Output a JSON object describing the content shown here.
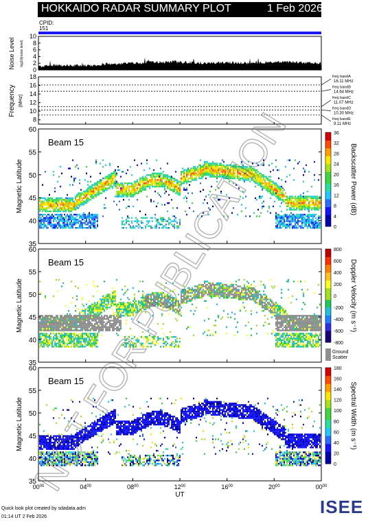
{
  "header": {
    "title": "HOKKAIDO RADAR SUMMARY PLOT",
    "date": "1 Feb 2026",
    "cpid_label": "CPID:",
    "cpid_value": "151"
  },
  "noise_panel": {
    "ylabel": "Noise Level",
    "ylabel_sub": "log10(noise level)",
    "ticks": [
      "0",
      "2",
      "4",
      "6",
      "8",
      "10"
    ]
  },
  "freq_panel": {
    "ylabel": "Frequency",
    "ylabel_unit": "(MHz)",
    "ticks": [
      "8",
      "10",
      "12",
      "14",
      "16",
      "18"
    ],
    "bands": [
      {
        "label": "freq bandA",
        "value": "16.11 MHz",
        "freq": 16.11
      },
      {
        "label": "freq bandB",
        "value": "14.64 MHz",
        "freq": 14.64
      },
      {
        "label": "freq bandC",
        "value": "11.07 MHz",
        "freq": 11.07
      },
      {
        "label": "freq bandD",
        "value": "10.30 MHz",
        "freq": 10.3
      },
      {
        "label": "freq bandE",
        "value": "9.11 MHz",
        "freq": 9.11
      }
    ]
  },
  "panels": [
    {
      "beam": "Beam 15",
      "ylabel": "Magnetic Latitude",
      "cbar_label": "Backscatter Power (dB)",
      "cbar_ticks": [
        "0",
        "4",
        "8",
        "12",
        "16",
        "20",
        "24",
        "28",
        "32",
        "36"
      ]
    },
    {
      "beam": "Beam 15",
      "ylabel": "Magnetic Latitude",
      "cbar_label": "Doppler Velocity (m s⁻¹)",
      "cbar_ticks": [
        "-800",
        "-600",
        "-400",
        "-200",
        "0",
        "200",
        "400",
        "600",
        "800"
      ],
      "ground_label": "Ground",
      "ground_label2": "Scatter"
    },
    {
      "beam": "Beam 15",
      "ylabel": "Magnetic Latitude",
      "cbar_label": "Spectral Width (m s⁻¹)",
      "cbar_ticks": [
        "0",
        "20",
        "40",
        "60",
        "80",
        "100",
        "120",
        "140",
        "160",
        "180"
      ]
    }
  ],
  "lat_ticks": [
    "35",
    "40",
    "45",
    "50",
    "55",
    "60"
  ],
  "xaxis": {
    "label": "UT",
    "ticks": [
      {
        "h": "00",
        "m": "00"
      },
      {
        "h": "04",
        "m": "00"
      },
      {
        "h": "08",
        "m": "00"
      },
      {
        "h": "12",
        "m": "00"
      },
      {
        "h": "16",
        "m": "00"
      },
      {
        "h": "20",
        "m": "00"
      },
      {
        "h": "00",
        "m": "00"
      }
    ]
  },
  "footer": {
    "credit": "Quick look plot created by sdadata.adm",
    "timestamp": "01:14 UT  2 Feb 2026",
    "logo_text": "ISEE"
  },
  "watermark": "NOT FOR PUBLICATION",
  "colors": {
    "cpid_bar": "#1a1aee",
    "ground_scatter": "#909090",
    "header_bg": "#000000",
    "header_fg": "#ffffff"
  },
  "chart_data": [
    {
      "type": "heatmap",
      "title": "Backscatter Power (dB)",
      "xlabel": "UT",
      "ylabel": "Magnetic Latitude",
      "xlim": [
        0,
        24
      ],
      "ylim": [
        35,
        60
      ],
      "clim": [
        0,
        36
      ],
      "x_ticks": [
        0,
        4,
        8,
        12,
        16,
        20,
        24
      ],
      "y_ticks": [
        35,
        40,
        45,
        50,
        55,
        60
      ],
      "echo_region": {
        "lat_min": 38.5,
        "lat_max": 53.5,
        "ut_min": 0.1,
        "ut_max": 23.9
      }
    },
    {
      "type": "heatmap",
      "title": "Doppler Velocity (m s⁻¹)",
      "xlabel": "UT",
      "ylabel": "Magnetic Latitude",
      "xlim": [
        0,
        24
      ],
      "ylim": [
        35,
        60
      ],
      "clim": [
        -800,
        800
      ],
      "x_ticks": [
        0,
        4,
        8,
        12,
        16,
        20,
        24
      ],
      "y_ticks": [
        35,
        40,
        45,
        50,
        55,
        60
      ]
    },
    {
      "type": "heatmap",
      "title": "Spectral Width (m s⁻¹)",
      "xlabel": "UT",
      "ylabel": "Magnetic Latitude",
      "xlim": [
        0,
        24
      ],
      "ylim": [
        35,
        60
      ],
      "clim": [
        0,
        180
      ],
      "x_ticks": [
        0,
        4,
        8,
        12,
        16,
        20,
        24
      ],
      "y_ticks": [
        35,
        40,
        45,
        50,
        55,
        60
      ]
    },
    {
      "type": "area",
      "title": "Noise Level",
      "ylim": [
        0,
        10
      ],
      "xlim": [
        0,
        24
      ],
      "x": [
        0,
        2,
        4,
        6,
        8,
        10,
        12,
        14,
        16,
        18,
        20,
        22,
        24
      ],
      "values": [
        1.2,
        1.4,
        1.3,
        1.8,
        2.0,
        2.4,
        2.3,
        2.1,
        2.2,
        2.0,
        2.4,
        2.3,
        1.9
      ]
    },
    {
      "type": "line",
      "title": "Frequency",
      "ylim": [
        7,
        18
      ],
      "xlim": [
        0,
        24
      ],
      "series": [
        {
          "name": "freq bandA",
          "values": [
            16.11,
            16.11
          ]
        },
        {
          "name": "freq bandB",
          "values": [
            14.64,
            14.64
          ]
        },
        {
          "name": "freq bandC",
          "values": [
            11.07,
            11.07
          ]
        },
        {
          "name": "freq bandD",
          "values": [
            10.3,
            10.3
          ]
        },
        {
          "name": "freq bandE",
          "values": [
            9.11,
            9.11
          ]
        }
      ]
    }
  ]
}
